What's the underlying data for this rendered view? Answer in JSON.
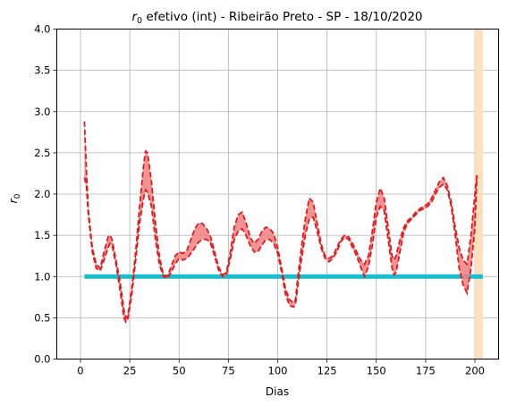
{
  "chart_data": {
    "type": "line",
    "title_var": "r",
    "title_sub": "0",
    "title_rest": " efetivo (int) - Ribeirão Preto - SP - 18/10/2020",
    "xlabel": "Dias",
    "ylabel_var": "r",
    "ylabel_sub": "0",
    "xlim": [
      -12,
      212
    ],
    "ylim": [
      0,
      4
    ],
    "xticks": [
      0,
      25,
      50,
      75,
      100,
      125,
      150,
      175,
      200
    ],
    "xtick_labels": [
      "0",
      "25",
      "50",
      "75",
      "100",
      "125",
      "150",
      "175",
      "200"
    ],
    "yticks": [
      0.0,
      0.5,
      1.0,
      1.5,
      2.0,
      2.5,
      3.0,
      3.5,
      4.0
    ],
    "ytick_labels": [
      "0.0",
      "0.5",
      "1.0",
      "1.5",
      "2.0",
      "2.5",
      "3.0",
      "3.5",
      "4.0"
    ],
    "grid": true,
    "reference_line": {
      "y": 1.0,
      "x_range": [
        2,
        204
      ],
      "color": "#17becf"
    },
    "shaded_span": {
      "x_range": [
        200,
        204
      ],
      "color": "#ffe0bc"
    },
    "band_color": "#f08080",
    "line_color": "#e31a1c",
    "series": [
      {
        "x": [
          2,
          3,
          4,
          6,
          8,
          10,
          12,
          14,
          15,
          16,
          18,
          20,
          22,
          23,
          24,
          26,
          28,
          30,
          32,
          33,
          34,
          36,
          38,
          40,
          42,
          44,
          46,
          48,
          50,
          52,
          54,
          56,
          58,
          60,
          62,
          64,
          66,
          68,
          70,
          72,
          74,
          76,
          78,
          80,
          82,
          84,
          86,
          88,
          90,
          92,
          94,
          96,
          98,
          100,
          102,
          104,
          106,
          108,
          109,
          110,
          112,
          114,
          116,
          118,
          120,
          122,
          124,
          126,
          128,
          130,
          132,
          134,
          136,
          138,
          140,
          142,
          144,
          146,
          148,
          150,
          152,
          154,
          156,
          158,
          159,
          160,
          162,
          164,
          166,
          168,
          170,
          172,
          174,
          176,
          178,
          180,
          182,
          184,
          186,
          188,
          190,
          192,
          194,
          196,
          198,
          200,
          201
        ],
        "values": [
          2.88,
          2.3,
          1.8,
          1.35,
          1.15,
          1.1,
          1.3,
          1.48,
          1.5,
          1.45,
          1.2,
          0.95,
          0.6,
          0.5,
          0.52,
          0.85,
          1.3,
          1.85,
          2.35,
          2.52,
          2.5,
          2.15,
          1.65,
          1.25,
          1.02,
          1.0,
          1.12,
          1.25,
          1.3,
          1.28,
          1.32,
          1.45,
          1.58,
          1.65,
          1.64,
          1.58,
          1.48,
          1.3,
          1.12,
          1.02,
          1.05,
          1.3,
          1.6,
          1.75,
          1.78,
          1.65,
          1.48,
          1.4,
          1.45,
          1.55,
          1.6,
          1.58,
          1.52,
          1.35,
          1.1,
          0.85,
          0.72,
          0.68,
          0.72,
          0.95,
          1.35,
          1.7,
          1.95,
          1.9,
          1.65,
          1.4,
          1.25,
          1.22,
          1.25,
          1.35,
          1.45,
          1.5,
          1.48,
          1.4,
          1.3,
          1.2,
          1.15,
          1.25,
          1.55,
          1.9,
          2.07,
          1.95,
          1.6,
          1.25,
          1.2,
          1.25,
          1.45,
          1.6,
          1.68,
          1.72,
          1.78,
          1.82,
          1.85,
          1.88,
          1.95,
          2.05,
          2.15,
          2.2,
          2.1,
          1.9,
          1.6,
          1.35,
          1.2,
          1.15,
          1.5,
          2.0,
          2.25
        ]
      },
      {
        "x": [
          2,
          3,
          4,
          6,
          8,
          10,
          12,
          14,
          15,
          16,
          18,
          20,
          22,
          23,
          24,
          26,
          28,
          30,
          32,
          33,
          34,
          36,
          38,
          40,
          42,
          44,
          46,
          48,
          50,
          52,
          54,
          56,
          58,
          60,
          62,
          64,
          66,
          68,
          70,
          72,
          74,
          76,
          78,
          80,
          82,
          84,
          86,
          88,
          90,
          92,
          94,
          96,
          98,
          100,
          102,
          104,
          106,
          108,
          109,
          110,
          112,
          114,
          116,
          118,
          120,
          122,
          124,
          126,
          128,
          130,
          132,
          134,
          136,
          138,
          140,
          142,
          144,
          146,
          148,
          150,
          152,
          154,
          156,
          158,
          159,
          160,
          162,
          164,
          166,
          168,
          170,
          172,
          174,
          176,
          178,
          180,
          182,
          184,
          186,
          188,
          190,
          192,
          194,
          196,
          198,
          200,
          201
        ],
        "values": [
          2.2,
          2.1,
          1.75,
          1.3,
          1.1,
          1.07,
          1.2,
          1.35,
          1.4,
          1.38,
          1.15,
          0.85,
          0.5,
          0.45,
          0.48,
          0.78,
          1.2,
          1.65,
          1.95,
          2.05,
          2.02,
          1.85,
          1.45,
          1.15,
          1.0,
          0.98,
          1.05,
          1.15,
          1.22,
          1.2,
          1.22,
          1.28,
          1.35,
          1.42,
          1.45,
          1.45,
          1.4,
          1.25,
          1.08,
          1.0,
          1.02,
          1.22,
          1.45,
          1.55,
          1.58,
          1.5,
          1.38,
          1.3,
          1.3,
          1.38,
          1.45,
          1.45,
          1.4,
          1.28,
          1.05,
          0.78,
          0.65,
          0.63,
          0.66,
          0.85,
          1.2,
          1.5,
          1.7,
          1.72,
          1.55,
          1.35,
          1.22,
          1.18,
          1.22,
          1.3,
          1.42,
          1.48,
          1.45,
          1.35,
          1.25,
          1.12,
          1.0,
          1.12,
          1.38,
          1.72,
          1.85,
          1.8,
          1.45,
          1.1,
          1.02,
          1.05,
          1.3,
          1.55,
          1.65,
          1.7,
          1.75,
          1.8,
          1.82,
          1.85,
          1.9,
          2.0,
          2.08,
          2.12,
          2.05,
          1.85,
          1.5,
          1.1,
          0.9,
          0.8,
          1.1,
          1.6,
          2.22
        ]
      }
    ]
  }
}
